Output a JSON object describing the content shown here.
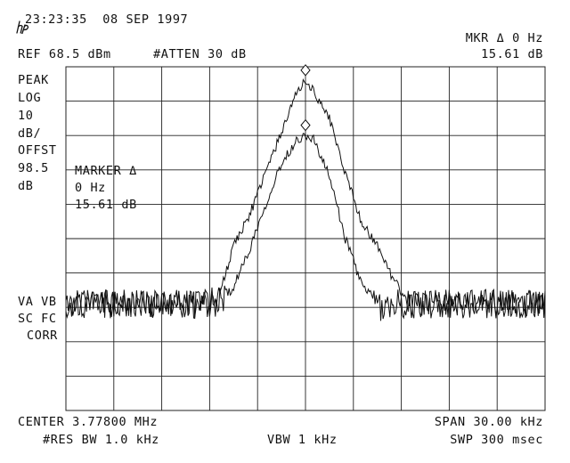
{
  "header": {
    "datetime": "23:23:35  08 SEP 1997",
    "ref_level": "REF 68.5 dBm",
    "attenuation": "#ATTEN 30 dB",
    "marker_readout_label": "MKR Δ 0 Hz",
    "marker_readout_value": "15.61 dB"
  },
  "left_annotations": {
    "detector": "PEAK",
    "scale_mode": "LOG",
    "scale_value": "10",
    "scale_unit": "dB/",
    "offset_label": "OFFST",
    "offset_value": "98.5",
    "offset_unit": "dB",
    "trace_flags_1": "VA VB",
    "trace_flags_2": "SC FC",
    "correction": "CORR"
  },
  "marker_box": {
    "title": "MARKER Δ",
    "frequency": "0 Hz",
    "amplitude": "15.61 dB"
  },
  "footer": {
    "center": "CENTER 3.77800 MHz",
    "span": "SPAN 30.00 kHz",
    "res_bw": "#RES BW 1.0 kHz",
    "vbw": "VBW 1 kHz",
    "sweep": "SWP 300 msec"
  },
  "chart_data": {
    "type": "line",
    "x_unit": "kHz offset from center",
    "xlim": [
      -15,
      15
    ],
    "ylim_dBm": [
      -31.5,
      68.5
    ],
    "reference_level_dBm": 68.5,
    "divisions": {
      "x": 10,
      "y": 10
    },
    "grid": true,
    "noise_floor_dBm": -0.5,
    "series": [
      {
        "x": [
          -15,
          -6.5,
          -5.5,
          -4.5,
          -3.5,
          -2.5,
          -1.5,
          -0.5,
          0,
          0.5,
          1.5,
          2.5,
          3.5,
          4.5,
          5.5,
          6.5,
          15
        ],
        "y": [
          -0.5,
          -0.5,
          0.5,
          16.5,
          25.5,
          37.5,
          49.5,
          61.5,
          64.5,
          61.5,
          53.5,
          37.5,
          23.5,
          16.5,
          6.5,
          -0.5,
          -0.5
        ]
      },
      {
        "x": [
          -15,
          -5.5,
          -4.5,
          -3.5,
          -2.5,
          -1.5,
          -0.5,
          0,
          0.5,
          1.5,
          2.5,
          3.5,
          4.5,
          5.5,
          15
        ],
        "y": [
          -0.5,
          -0.5,
          4.5,
          15.5,
          28.5,
          40.5,
          47.5,
          48.5,
          47.5,
          36.5,
          18.5,
          5.5,
          -1.5,
          -0.5,
          -0.5
        ]
      }
    ],
    "markers": [
      {
        "x": 0,
        "y": 67.5
      },
      {
        "x": 0,
        "y": 51.5
      }
    ]
  }
}
